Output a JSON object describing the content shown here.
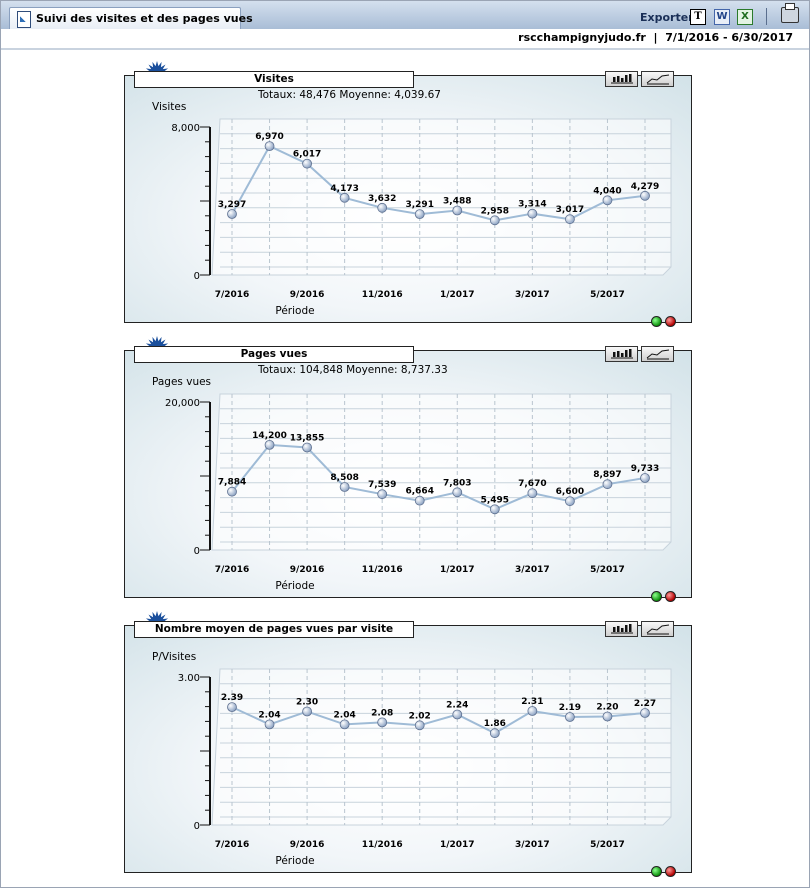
{
  "header": {
    "tab_title": "Suivi des visites et des pages vues",
    "export_label": "Exporter",
    "site": "rscchampignyjudo.fr",
    "separator": "|",
    "period": "7/1/2016 - 6/30/2017"
  },
  "icons": {
    "export_text": "T",
    "export_doc": "W",
    "export_xls": "X"
  },
  "colors": {
    "line": "#9fbbd6",
    "marker": "#8ea4c4",
    "grid": "#c8d3dc",
    "accent": "#1a4f9c"
  },
  "chart_data": [
    {
      "type": "line",
      "title": "Visites",
      "totals_text": "Totaux: 48,476   Moyenne: 4,039.67",
      "ylabel": "Visites",
      "xlabel": "Période",
      "ylim": [
        0,
        8000
      ],
      "y_tick_labels": [
        "8,000",
        "0"
      ],
      "x": [
        "7/2016",
        "8/2016",
        "9/2016",
        "10/2016",
        "11/2016",
        "12/2016",
        "1/2017",
        "2/2017",
        "3/2017",
        "4/2017",
        "5/2017",
        "6/2017"
      ],
      "x_tick_labels": [
        "7/2016",
        "",
        "9/2016",
        "",
        "11/2016",
        "",
        "1/2017",
        "",
        "3/2017",
        "",
        "5/2017",
        ""
      ],
      "values": [
        3297,
        6970,
        6017,
        4173,
        3632,
        3291,
        3488,
        2958,
        3314,
        3017,
        4040,
        4279
      ],
      "value_labels": [
        "3,297",
        "6,970",
        "6,017",
        "4,173",
        "3,632",
        "3,291",
        "3,488",
        "2,958",
        "3,314",
        "3,017",
        "4,040",
        "4,279"
      ]
    },
    {
      "type": "line",
      "title": "Pages vues",
      "totals_text": "Totaux: 104,848   Moyenne: 8,737.33",
      "ylabel": "Pages vues",
      "xlabel": "Période",
      "ylim": [
        0,
        20000
      ],
      "y_tick_labels": [
        "20,000",
        "0"
      ],
      "x": [
        "7/2016",
        "8/2016",
        "9/2016",
        "10/2016",
        "11/2016",
        "12/2016",
        "1/2017",
        "2/2017",
        "3/2017",
        "4/2017",
        "5/2017",
        "6/2017"
      ],
      "x_tick_labels": [
        "7/2016",
        "",
        "9/2016",
        "",
        "11/2016",
        "",
        "1/2017",
        "",
        "3/2017",
        "",
        "5/2017",
        ""
      ],
      "values": [
        7884,
        14200,
        13855,
        8508,
        7539,
        6664,
        7803,
        5495,
        7670,
        6600,
        8897,
        9733
      ],
      "value_labels": [
        "7,884",
        "14,200",
        "13,855",
        "8,508",
        "7,539",
        "6,664",
        "7,803",
        "5,495",
        "7,670",
        "6,600",
        "8,897",
        "9,733"
      ]
    },
    {
      "type": "line",
      "title": "Nombre moyen de pages vues par visite",
      "totals_text": "",
      "ylabel": "P/Visites",
      "xlabel": "Période",
      "ylim": [
        0,
        3
      ],
      "y_tick_labels": [
        "3.00",
        "0"
      ],
      "x": [
        "7/2016",
        "8/2016",
        "9/2016",
        "10/2016",
        "11/2016",
        "12/2016",
        "1/2017",
        "2/2017",
        "3/2017",
        "4/2017",
        "5/2017",
        "6/2017"
      ],
      "x_tick_labels": [
        "7/2016",
        "",
        "9/2016",
        "",
        "11/2016",
        "",
        "1/2017",
        "",
        "3/2017",
        "",
        "5/2017",
        ""
      ],
      "values": [
        2.39,
        2.04,
        2.3,
        2.04,
        2.08,
        2.02,
        2.24,
        1.86,
        2.31,
        2.19,
        2.2,
        2.27
      ],
      "value_labels": [
        "2.39",
        "2.04",
        "2.30",
        "2.04",
        "2.08",
        "2.02",
        "2.24",
        "1.86",
        "2.31",
        "2.19",
        "2.20",
        "2.27"
      ]
    }
  ]
}
